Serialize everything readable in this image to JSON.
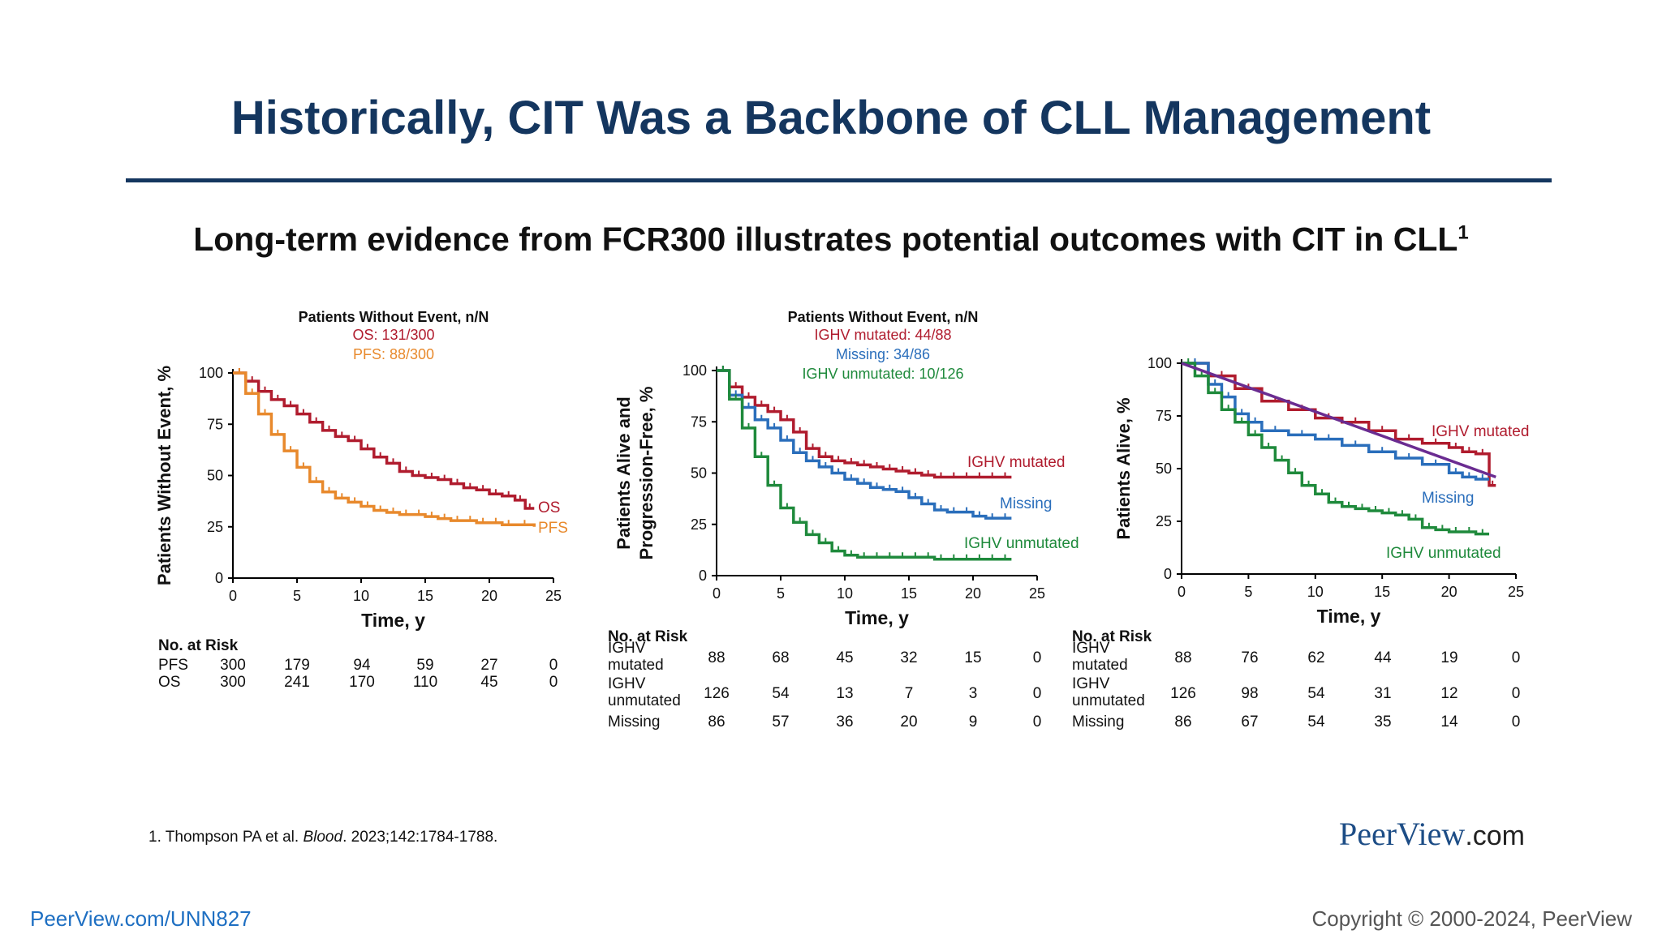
{
  "slide": {
    "title": "Historically, CIT Was a Backbone of CLL Management",
    "subtitle": "Long-term evidence from FCR300 illustrates potential outcomes with CIT in CLL",
    "subtitle_sup": "1",
    "footnote_prefix": "1. Thompson PA et al. ",
    "footnote_journal": "Blood",
    "footnote_suffix": ". 2023;142:1784-1788.",
    "logo_main": "PeerView",
    "logo_suffix": ".com",
    "footer_link": "PeerView.com/UNN827",
    "copyright": "Copyright © 2000-2024, PeerView"
  },
  "colors": {
    "title": "#14365f",
    "red": "#b01c2e",
    "orange": "#e8892c",
    "blue": "#2a6ebb",
    "green": "#1f8a3c",
    "purple": "#6a2c91"
  },
  "chart_data": [
    {
      "type": "line",
      "title": "Patients Without Event, n/N",
      "legend_lines": [
        "OS: 131/300",
        "PFS: 88/300"
      ],
      "xlabel": "Time, y",
      "ylabel": "Patients Without Event, %",
      "xlim": [
        0,
        25
      ],
      "ylim": [
        0,
        100
      ],
      "xticks": [
        0,
        5,
        10,
        15,
        20,
        25
      ],
      "yticks": [
        0,
        25,
        50,
        75,
        100
      ],
      "series": [
        {
          "name": "OS",
          "color": "#b01c2e",
          "x": [
            0,
            1,
            2,
            3,
            4,
            5,
            6,
            7,
            8,
            9,
            10,
            11,
            12,
            13,
            14,
            15,
            16,
            17,
            18,
            19,
            20,
            21,
            22,
            22.8,
            23.5
          ],
          "y": [
            100,
            96,
            91,
            87,
            84,
            80,
            76,
            72,
            69,
            67,
            63,
            59,
            56,
            52,
            50,
            49,
            48,
            46,
            44,
            43,
            41,
            40,
            38,
            34,
            34
          ]
        },
        {
          "name": "PFS",
          "color": "#e8892c",
          "x": [
            0,
            1,
            2,
            3,
            4,
            5,
            6,
            7,
            8,
            9,
            10,
            11,
            12,
            13,
            14,
            15,
            16,
            17,
            18,
            19,
            20,
            21,
            22,
            23.5
          ],
          "y": [
            100,
            90,
            80,
            70,
            62,
            54,
            47,
            42,
            39,
            37,
            35,
            33,
            32,
            31,
            31,
            30,
            29,
            28,
            28,
            27,
            27,
            26,
            26,
            25
          ]
        }
      ],
      "risk_table": {
        "header": "No. at Risk",
        "times": [
          0,
          5,
          10,
          15,
          20,
          25
        ],
        "rows": [
          {
            "label": "PFS",
            "values": [
              "300",
              "179",
              "94",
              "59",
              "27",
              "0"
            ]
          },
          {
            "label": "OS",
            "values": [
              "300",
              "241",
              "170",
              "110",
              "45",
              "0"
            ]
          }
        ]
      }
    },
    {
      "type": "line",
      "title": "Patients Without Event, n/N",
      "legend_lines": [
        "IGHV mutated: 44/88",
        "Missing: 34/86",
        "IGHV unmutated: 10/126"
      ],
      "xlabel": "Time, y",
      "ylabel": "Patients Alive and Progression-Free, %",
      "xlim": [
        0,
        25
      ],
      "ylim": [
        0,
        100
      ],
      "xticks": [
        0,
        5,
        10,
        15,
        20,
        25
      ],
      "yticks": [
        0,
        25,
        50,
        75,
        100
      ],
      "series": [
        {
          "name": "IGHV mutated",
          "color": "#b01c2e",
          "x": [
            0,
            1,
            2,
            3,
            4,
            5,
            6,
            7,
            8,
            9,
            10,
            11,
            12,
            13,
            14,
            15,
            16,
            17,
            18,
            19,
            20,
            21,
            22,
            23
          ],
          "y": [
            100,
            92,
            87,
            83,
            80,
            76,
            70,
            62,
            58,
            56,
            55,
            54,
            53,
            52,
            51,
            50,
            49,
            48,
            48,
            48,
            48,
            48,
            48,
            48
          ]
        },
        {
          "name": "Missing",
          "color": "#2a6ebb",
          "x": [
            0,
            1,
            2,
            3,
            4,
            5,
            6,
            7,
            8,
            9,
            10,
            11,
            12,
            13,
            14,
            15,
            16,
            17,
            18,
            19,
            20,
            21,
            22,
            23
          ],
          "y": [
            100,
            88,
            82,
            76,
            72,
            66,
            60,
            56,
            53,
            50,
            47,
            45,
            43,
            42,
            41,
            38,
            35,
            32,
            31,
            31,
            29,
            28,
            28,
            28
          ]
        },
        {
          "name": "IGHV unmutated",
          "color": "#1f8a3c",
          "x": [
            0,
            1,
            2,
            3,
            4,
            5,
            6,
            7,
            8,
            9,
            10,
            11,
            12,
            13,
            14,
            15,
            16,
            17,
            18,
            19,
            20,
            21,
            22,
            23
          ],
          "y": [
            100,
            86,
            72,
            58,
            44,
            33,
            26,
            20,
            16,
            12,
            10,
            9,
            9,
            9,
            9,
            9,
            9,
            8,
            8,
            8,
            8,
            8,
            8,
            8
          ]
        }
      ],
      "risk_table": {
        "header": "No. at Risk",
        "times": [
          0,
          5,
          10,
          15,
          20,
          25
        ],
        "rows": [
          {
            "label": "IGHV mutated",
            "values": [
              "88",
              "68",
              "45",
              "32",
              "15",
              "0"
            ]
          },
          {
            "label": "IGHV unmutated",
            "values": [
              "126",
              "54",
              "13",
              "7",
              "3",
              "0"
            ]
          },
          {
            "label": "Missing",
            "values": [
              "86",
              "57",
              "36",
              "20",
              "9",
              "0"
            ]
          }
        ]
      }
    },
    {
      "type": "line",
      "title": "",
      "legend_lines": [],
      "xlabel": "Time, y",
      "ylabel": "Patients Alive, %",
      "xlim": [
        0,
        25
      ],
      "ylim": [
        0,
        100
      ],
      "xticks": [
        0,
        5,
        10,
        15,
        20,
        25
      ],
      "yticks": [
        0,
        25,
        50,
        75,
        100
      ],
      "series": [
        {
          "name": "IGHV mutated",
          "color": "#b01c2e",
          "x": [
            0,
            2,
            4,
            6,
            8,
            10,
            12,
            14,
            16,
            18,
            20,
            21,
            22,
            23,
            23.5
          ],
          "y": [
            100,
            94,
            88,
            82,
            78,
            74,
            72,
            68,
            64,
            62,
            60,
            58,
            57,
            42,
            42
          ]
        },
        {
          "name": "Missing",
          "color": "#2a6ebb",
          "x": [
            0,
            2,
            3,
            4,
            5,
            6,
            8,
            10,
            12,
            14,
            16,
            18,
            20,
            21,
            22,
            23
          ],
          "y": [
            100,
            90,
            84,
            76,
            72,
            68,
            66,
            64,
            61,
            58,
            55,
            52,
            48,
            46,
            45,
            45
          ]
        },
        {
          "name": "IGHV unmutated",
          "color": "#1f8a3c",
          "x": [
            0,
            1,
            2,
            3,
            4,
            5,
            6,
            7,
            8,
            9,
            10,
            11,
            12,
            13,
            14,
            15,
            16,
            17,
            18,
            19,
            20,
            21,
            22,
            23
          ],
          "y": [
            100,
            94,
            86,
            78,
            72,
            66,
            60,
            54,
            48,
            42,
            38,
            34,
            32,
            31,
            30,
            29,
            28,
            26,
            22,
            21,
            20,
            20,
            19,
            19
          ]
        },
        {
          "name": "",
          "color": "#6a2c91",
          "x": [
            0,
            23.5
          ],
          "y": [
            100,
            46
          ]
        }
      ],
      "series_labels": [
        "IGHV mutated",
        "Missing",
        "IGHV unmutated"
      ],
      "risk_table": {
        "header": "No. at Risk",
        "times": [
          0,
          5,
          10,
          15,
          20,
          25
        ],
        "rows": [
          {
            "label": "IGHV mutated",
            "values": [
              "88",
              "76",
              "62",
              "44",
              "19",
              "0"
            ]
          },
          {
            "label": "IGHV unmutated",
            "values": [
              "126",
              "98",
              "54",
              "31",
              "12",
              "0"
            ]
          },
          {
            "label": "Missing",
            "values": [
              "86",
              "67",
              "54",
              "35",
              "14",
              "0"
            ]
          }
        ]
      }
    }
  ]
}
